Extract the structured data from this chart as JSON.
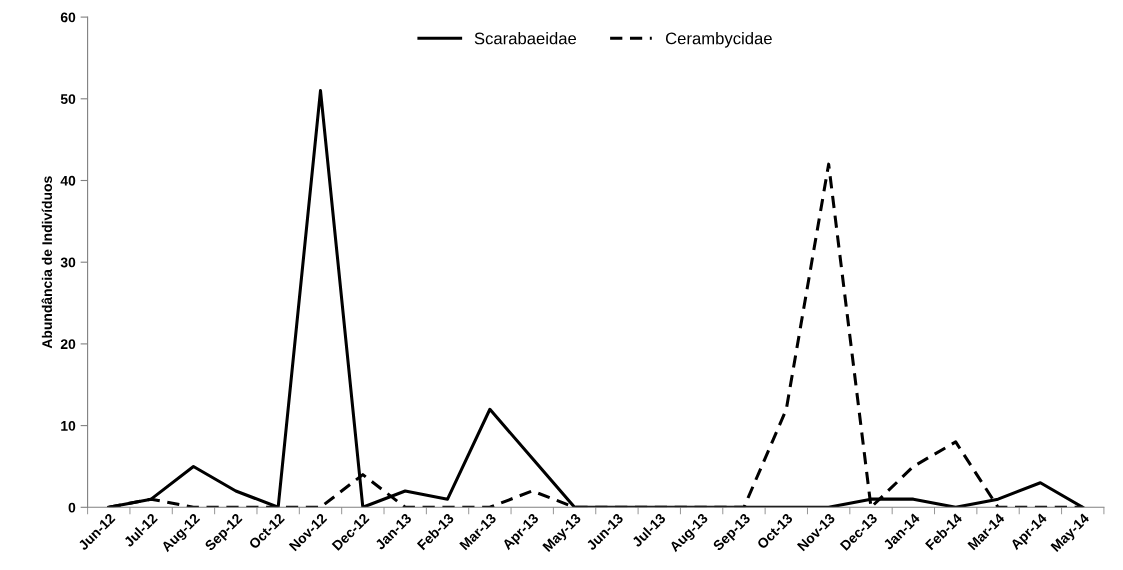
{
  "chart_data": {
    "type": "line",
    "ylabel": "Abundância de Indivíduos",
    "categories": [
      "Jun-12",
      "Jul-12",
      "Aug-12",
      "Sep-12",
      "Oct-12",
      "Nov-12",
      "Dec-12",
      "Jan-13",
      "Feb-13",
      "Mar-13",
      "Apr-13",
      "May-13",
      "Jun-13",
      "Jul-13",
      "Aug-13",
      "Sep-13",
      "Oct-13",
      "Nov-13",
      "Dec-13",
      "Jan-14",
      "Feb-14",
      "Mar-14",
      "Apr-14",
      "May-14"
    ],
    "series": [
      {
        "name": "Scarabaeidae",
        "color": "#000000",
        "line_style": "solid",
        "values": [
          0,
          1,
          5,
          2,
          0,
          51,
          0,
          2,
          1,
          12,
          6,
          0,
          0,
          0,
          0,
          0,
          0,
          0,
          1,
          1,
          0,
          1,
          3,
          0
        ]
      },
      {
        "name": "Cerambycidae",
        "color": "#000000",
        "line_style": "dashed",
        "values": [
          0,
          1,
          0,
          0,
          0,
          0,
          4,
          0,
          0,
          0,
          2,
          0,
          0,
          0,
          0,
          0,
          12,
          42,
          0,
          5,
          8,
          0,
          0,
          0
        ]
      }
    ],
    "ylim": [
      0,
      60
    ],
    "yticks": [
      0,
      10,
      20,
      30,
      40,
      50,
      60
    ],
    "grid": false,
    "legend": "top",
    "marker": "none"
  }
}
